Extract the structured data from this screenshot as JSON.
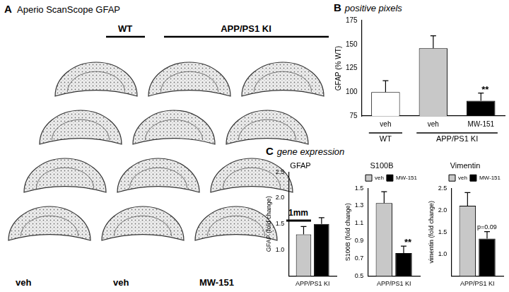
{
  "panel_a": {
    "letter": "A",
    "title": "Aperio ScanScope GFAP",
    "group_labels": [
      "WT",
      "APP/PS1 KI"
    ],
    "scale_bar": "1mm",
    "condition_labels": [
      "veh",
      "veh",
      "MW-151"
    ]
  },
  "panel_labels": [
    {
      "letter": "B",
      "caption": "positive pixels"
    },
    {
      "letter": "C",
      "caption": "gene expression"
    }
  ],
  "chart_data": [
    {
      "type": "bar",
      "y_label": "GFAP (% WT)",
      "categories": [
        "veh",
        "veh",
        "MW-151"
      ],
      "values": [
        100,
        146,
        91
      ],
      "errors": [
        12,
        13,
        8
      ],
      "colors": [
        "#ffffff",
        "#c8c8c8",
        "#000000"
      ],
      "ylim": [
        75,
        175
      ],
      "yticks": [
        75,
        100,
        125,
        150,
        175
      ],
      "grid": false,
      "groups": [
        {
          "label": "WT",
          "count": 1
        },
        {
          "label": "APP/PS1 KI",
          "count": 2
        }
      ],
      "annotations": [
        {
          "text": "**",
          "category": "MW-151"
        }
      ]
    },
    {
      "type": "bar",
      "title": "GFAP",
      "y_label": "GFAP (fold change)",
      "categories": [
        "APP/PS1 KI"
      ],
      "series": [
        {
          "name": "veh",
          "color": "#c8c8c8",
          "values": [
            1.3
          ],
          "errors": [
            0.15
          ]
        },
        {
          "name": "MW-151",
          "color": "#000000",
          "values": [
            1.5
          ],
          "errors": [
            0.12
          ]
        }
      ],
      "ylim": [
        0.5,
        2.5
      ],
      "yticks": [
        {
          "value": 1,
          "label": "1.0"
        },
        1.5,
        {
          "value": 2,
          "label": "2.0"
        },
        2.5
      ],
      "grid": false
    },
    {
      "type": "bar",
      "title": "S100B",
      "y_label": "S100B (fold change)",
      "categories": [
        "APP/PS1 KI"
      ],
      "series": [
        {
          "name": "veh",
          "color": "#c8c8c8",
          "values": [
            1.33
          ],
          "errors": [
            0.13
          ]
        },
        {
          "name": "MW-151",
          "color": "#000000",
          "values": [
            0.76
          ],
          "errors": [
            0.08
          ]
        }
      ],
      "ylim": [
        0.5,
        1.5
      ],
      "yticks": [
        0.5,
        0.7,
        0.9,
        1.1,
        1.3,
        1.5
      ],
      "grid": false,
      "legend": "top-right",
      "annotations": [
        {
          "text": "**",
          "series": "MW-151"
        }
      ]
    },
    {
      "type": "bar",
      "title": "Vimentin",
      "y_label": "vimentin (fold change)",
      "categories": [
        "APP/PS1 KI"
      ],
      "series": [
        {
          "name": "veh",
          "color": "#c8c8c8",
          "values": [
            2.1
          ],
          "errors": [
            0.3
          ]
        },
        {
          "name": "MW-151",
          "color": "#000000",
          "values": [
            1.35
          ],
          "errors": [
            0.16
          ]
        }
      ],
      "ylim": [
        0.5,
        2.5
      ],
      "yticks": [
        {
          "value": 1,
          "label": "1.0"
        },
        1.5,
        {
          "value": 2,
          "label": "2.0"
        },
        2.5
      ],
      "grid": false,
      "legend": "top-right",
      "annotations": [
        {
          "text": "p=0.09",
          "series": "MW-151"
        }
      ]
    }
  ]
}
